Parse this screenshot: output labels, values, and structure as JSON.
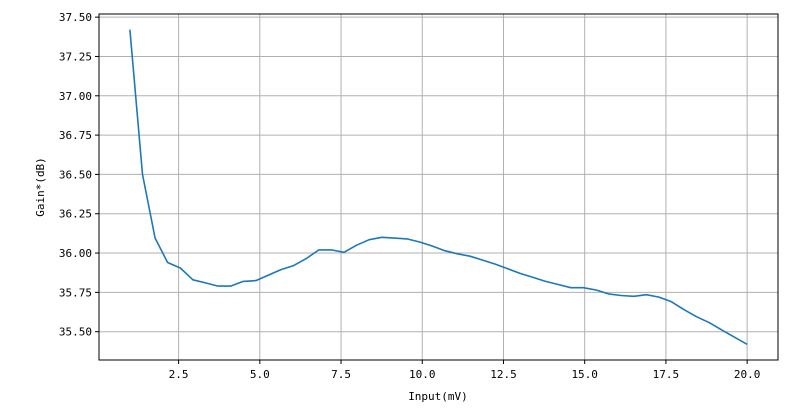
{
  "chart_data": {
    "type": "line",
    "title": "",
    "xlabel": "Input(mV)",
    "ylabel": "Gain*(dB)",
    "xlim": [
      0.05,
      20.95
    ],
    "ylim": [
      35.32,
      37.52
    ],
    "xticks": [
      2.5,
      5.0,
      7.5,
      10.0,
      12.5,
      15.0,
      17.5,
      20.0
    ],
    "xtick_labels": [
      "2.5",
      "5.0",
      "7.5",
      "10.0",
      "12.5",
      "15.0",
      "17.5",
      "20.0"
    ],
    "yticks": [
      35.5,
      35.75,
      36.0,
      36.25,
      36.5,
      36.75,
      37.0,
      37.25,
      37.5
    ],
    "ytick_labels": [
      "35.50",
      "35.75",
      "36.00",
      "36.25",
      "36.50",
      "36.75",
      "37.00",
      "37.25",
      "37.50"
    ],
    "grid": true,
    "series": [
      {
        "color": "#1f77b4",
        "x": [
          1.0,
          1.388,
          1.776,
          2.163,
          2.551,
          2.939,
          3.327,
          3.714,
          4.102,
          4.49,
          4.878,
          5.265,
          5.653,
          6.041,
          6.429,
          6.816,
          7.204,
          7.592,
          7.98,
          8.367,
          8.755,
          9.143,
          9.531,
          9.918,
          10.306,
          10.694,
          11.082,
          11.469,
          11.857,
          12.245,
          12.633,
          13.02,
          13.408,
          13.796,
          14.184,
          14.571,
          14.959,
          15.347,
          15.735,
          16.122,
          16.51,
          16.898,
          17.286,
          17.673,
          18.061,
          18.449,
          18.837,
          19.224,
          19.612,
          20.0
        ],
        "y": [
          37.42,
          36.5,
          36.095,
          35.94,
          35.905,
          35.83,
          35.81,
          35.79,
          35.79,
          35.82,
          35.825,
          35.86,
          35.895,
          35.92,
          35.965,
          36.02,
          36.02,
          36.005,
          36.05,
          36.085,
          36.1,
          36.095,
          36.09,
          36.07,
          36.045,
          36.015,
          35.995,
          35.98,
          35.955,
          35.93,
          35.9,
          35.87,
          35.845,
          35.82,
          35.8,
          35.78,
          35.78,
          35.765,
          35.74,
          35.73,
          35.725,
          35.735,
          35.72,
          35.69,
          35.64,
          35.595,
          35.557,
          35.51,
          35.465,
          35.42
        ]
      }
    ]
  }
}
